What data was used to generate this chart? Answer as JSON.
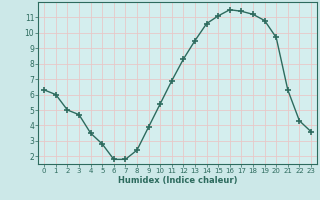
{
  "x": [
    0,
    1,
    2,
    3,
    4,
    5,
    6,
    7,
    8,
    9,
    10,
    11,
    12,
    13,
    14,
    15,
    16,
    17,
    18,
    19,
    20,
    21,
    22,
    23
  ],
  "y": [
    6.3,
    6.0,
    5.0,
    4.7,
    3.5,
    2.8,
    1.8,
    1.8,
    2.4,
    3.9,
    5.4,
    6.9,
    8.3,
    9.5,
    10.6,
    11.1,
    11.5,
    11.4,
    11.2,
    10.8,
    9.7,
    6.3,
    4.3,
    3.6
  ],
  "xlabel": "Humidex (Indice chaleur)",
  "ylabel": "",
  "xlim": [
    -0.5,
    23.5
  ],
  "ylim": [
    1.5,
    12.0
  ],
  "yticks": [
    2,
    3,
    4,
    5,
    6,
    7,
    8,
    9,
    10,
    11
  ],
  "xticks": [
    0,
    1,
    2,
    3,
    4,
    5,
    6,
    7,
    8,
    9,
    10,
    11,
    12,
    13,
    14,
    15,
    16,
    17,
    18,
    19,
    20,
    21,
    22,
    23
  ],
  "line_color": "#2d6b5e",
  "marker_color": "#2d6b5e",
  "bg_color": "#cce8e8",
  "grid_color": "#e8c8c8",
  "axes_bg": "#d4eeee"
}
